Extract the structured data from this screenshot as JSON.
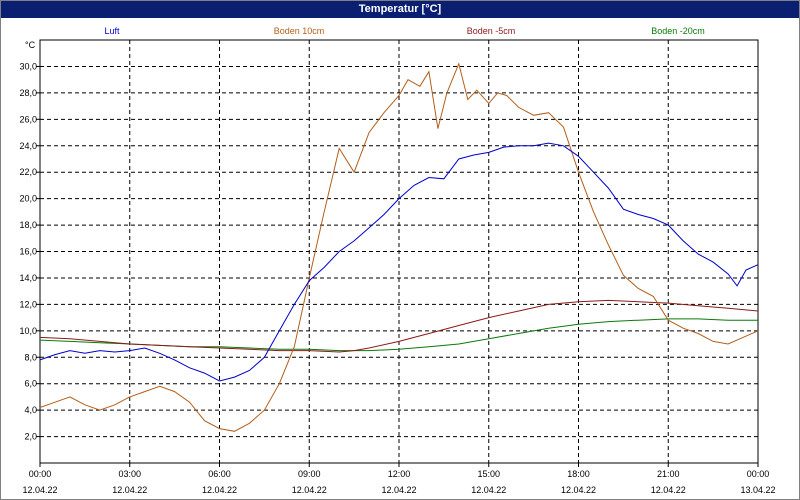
{
  "window": {
    "title": "Temperatur [°C]"
  },
  "chart_data": {
    "type": "line",
    "title": "Temperatur [°C]",
    "ylabel": "°C",
    "xlabel": "",
    "ylim": [
      0,
      32
    ],
    "xlim": [
      0,
      24
    ],
    "grid": true,
    "legend_position": "top",
    "yticks": [
      "2,0",
      "4,0",
      "6,0",
      "8,0",
      "10,0",
      "12,0",
      "14,0",
      "16,0",
      "18,0",
      "20,0",
      "22,0",
      "24,0",
      "26,0",
      "28,0",
      "30,0"
    ],
    "ytick_values": [
      2,
      4,
      6,
      8,
      10,
      12,
      14,
      16,
      18,
      20,
      22,
      24,
      26,
      28,
      30
    ],
    "xticks": [
      {
        "x": 0,
        "time": "00:00",
        "date": "12.04.22"
      },
      {
        "x": 3,
        "time": "03:00",
        "date": "12.04.22"
      },
      {
        "x": 6,
        "time": "06:00",
        "date": "12.04.22"
      },
      {
        "x": 9,
        "time": "09:00",
        "date": "12.04.22"
      },
      {
        "x": 12,
        "time": "12:00",
        "date": "12.04.22"
      },
      {
        "x": 15,
        "time": "15:00",
        "date": "12.04.22"
      },
      {
        "x": 18,
        "time": "18:00",
        "date": "12.04.22"
      },
      {
        "x": 21,
        "time": "21:00",
        "date": "12.04.22"
      },
      {
        "x": 24,
        "time": "00:00",
        "date": "13.04.22"
      }
    ],
    "series": [
      {
        "name": "Luft",
        "color": "#0000cc",
        "x": [
          0,
          0.5,
          1,
          1.5,
          2,
          2.5,
          3,
          3.5,
          4,
          4.5,
          5,
          5.5,
          6,
          6.5,
          7,
          7.5,
          8,
          8.5,
          9,
          9.5,
          10,
          10.5,
          11,
          11.5,
          12,
          12.5,
          13,
          13.5,
          14,
          14.5,
          15,
          15.5,
          16,
          16.5,
          17,
          17.5,
          18,
          18.5,
          19,
          19.5,
          20,
          20.5,
          21,
          21.5,
          22,
          22.5,
          23,
          23.3,
          23.6,
          24
        ],
        "y": [
          7.8,
          8.2,
          8.5,
          8.3,
          8.5,
          8.4,
          8.5,
          8.7,
          8.3,
          7.8,
          7.2,
          6.8,
          6.2,
          6.5,
          7.0,
          8.0,
          10.0,
          12.0,
          13.8,
          14.8,
          16.0,
          16.8,
          17.8,
          18.8,
          20.0,
          21.0,
          21.6,
          21.5,
          23.0,
          23.3,
          23.5,
          23.9,
          24.0,
          24.0,
          24.2,
          24.0,
          23.2,
          22.0,
          20.8,
          19.2,
          18.8,
          18.5,
          18.0,
          16.8,
          15.8,
          15.2,
          14.3,
          13.4,
          14.6,
          15.0
        ]
      },
      {
        "name": "Boden 10cm",
        "color": "#b35e1a",
        "x": [
          0,
          0.5,
          1,
          1.5,
          2,
          2.5,
          3,
          3.5,
          4,
          4.5,
          5,
          5.5,
          6,
          6.5,
          7,
          7.5,
          8,
          8.5,
          9,
          9.5,
          10,
          10.5,
          11,
          11.5,
          12,
          12.3,
          12.7,
          13,
          13.3,
          13.6,
          14,
          14.3,
          14.6,
          15,
          15.3,
          15.6,
          16,
          16.5,
          17,
          17.5,
          18,
          18.5,
          19,
          19.5,
          20,
          20.5,
          21,
          21.5,
          22,
          22.5,
          23,
          23.5,
          24
        ],
        "y": [
          4.2,
          4.6,
          5.0,
          4.4,
          4.0,
          4.4,
          5.0,
          5.4,
          5.8,
          5.4,
          4.6,
          3.2,
          2.6,
          2.4,
          3.0,
          4.0,
          6.0,
          8.8,
          14.0,
          19.0,
          23.8,
          22.0,
          25.0,
          26.5,
          27.8,
          29.0,
          28.5,
          29.6,
          25.3,
          28.0,
          30.2,
          27.5,
          28.2,
          27.2,
          28.0,
          27.8,
          26.9,
          26.3,
          26.5,
          25.4,
          22.0,
          19.0,
          16.5,
          14.2,
          13.2,
          12.6,
          10.8,
          10.2,
          9.8,
          9.2,
          9.0,
          9.5,
          10.0
        ]
      },
      {
        "name": "Boden -5cm",
        "color": "#8b1a1a",
        "x": [
          0,
          1,
          2,
          3,
          4,
          5,
          6,
          7,
          8,
          9,
          10,
          10.5,
          11,
          12,
          13,
          14,
          15,
          16,
          17,
          18,
          19,
          20,
          21,
          22,
          23,
          24
        ],
        "y": [
          9.5,
          9.4,
          9.2,
          9.0,
          8.9,
          8.8,
          8.7,
          8.6,
          8.5,
          8.5,
          8.4,
          8.5,
          8.7,
          9.2,
          9.8,
          10.4,
          11.0,
          11.5,
          12.0,
          12.2,
          12.3,
          12.2,
          12.1,
          11.9,
          11.7,
          11.5
        ]
      },
      {
        "name": "Boden -20cm",
        "color": "#0a7a0a",
        "x": [
          0,
          1,
          2,
          3,
          4,
          5,
          6,
          7,
          8,
          9,
          10,
          11,
          12,
          13,
          14,
          15,
          16,
          17,
          18,
          19,
          20,
          21,
          22,
          23,
          24
        ],
        "y": [
          9.3,
          9.2,
          9.1,
          9.0,
          8.9,
          8.8,
          8.8,
          8.7,
          8.6,
          8.6,
          8.5,
          8.5,
          8.6,
          8.8,
          9.0,
          9.4,
          9.8,
          10.2,
          10.5,
          10.7,
          10.8,
          10.9,
          10.9,
          10.8,
          10.8
        ]
      }
    ]
  }
}
